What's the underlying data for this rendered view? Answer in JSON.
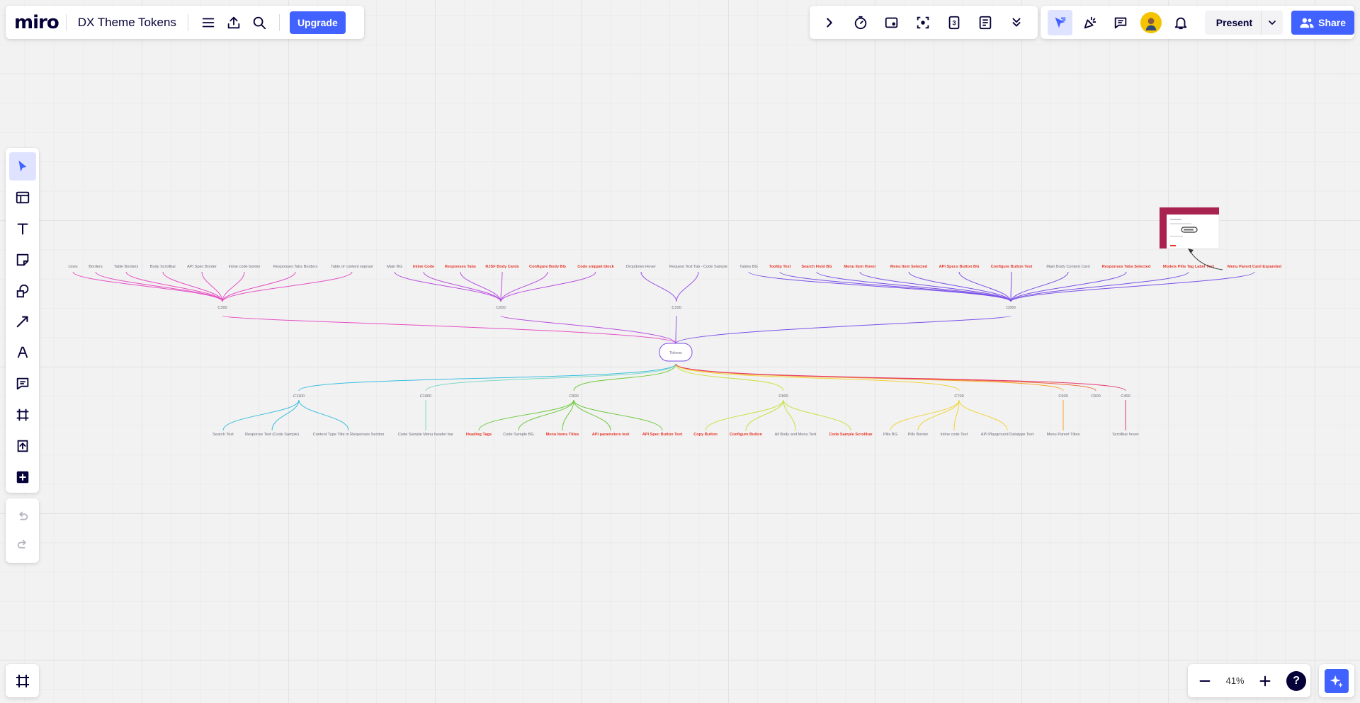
{
  "app": {
    "logo": "miro",
    "board_title": "DX Theme Tokens",
    "upgrade_label": "Upgrade"
  },
  "toolbar_right": {
    "present_label": "Present",
    "share_label": "Share"
  },
  "zoom": {
    "level": "41%"
  },
  "help_label": "?",
  "mindmap": {
    "root": "Tokens",
    "top_groups": [
      {
        "label": "C300",
        "color": "#e64fc4",
        "children": [
          {
            "text": "Lines",
            "red": false
          },
          {
            "text": "Borders",
            "red": false
          },
          {
            "text": "Table Borders",
            "red": false
          },
          {
            "text": "Body Scrollbar",
            "red": false
          },
          {
            "text": "API Spec Border",
            "red": false
          },
          {
            "text": "Inline code border",
            "red": false
          },
          {
            "text": "Responses Tabs Borders",
            "red": false
          },
          {
            "text": "Table of content sepraor",
            "red": false
          }
        ]
      },
      {
        "label": "C200",
        "color": "#b84fe0",
        "children": [
          {
            "text": "Main BG",
            "red": false
          },
          {
            "text": "Inline Code",
            "red": true
          },
          {
            "text": "Responses Tabs",
            "red": true
          },
          {
            "text": "RJSF Body Cards",
            "red": true
          },
          {
            "text": "Configure Body BG",
            "red": true
          },
          {
            "text": "Code snippet block",
            "red": true
          }
        ]
      },
      {
        "label": "C100",
        "color": "#9a4fe6",
        "children": [
          {
            "text": "Dropdown Hover",
            "red": false
          },
          {
            "text": "Request Text Tab - Code Sample",
            "red": false
          }
        ]
      },
      {
        "label": "C000",
        "color": "#7b4fe8",
        "children": [
          {
            "text": "Tables BG",
            "red": false
          },
          {
            "text": "Tooltip Text",
            "red": true
          },
          {
            "text": "Search Field BG",
            "red": true
          },
          {
            "text": "Menu Item Hover",
            "red": true
          },
          {
            "text": "Menu Item Selected",
            "red": true
          },
          {
            "text": "API Specs Button BG",
            "red": true
          },
          {
            "text": "Configure Button Text",
            "red": true
          },
          {
            "text": "Main Body Content Card",
            "red": false
          },
          {
            "text": "Responses Tabs Selected",
            "red": true
          },
          {
            "text": "Models Pills Tag Label Text",
            "red": true
          },
          {
            "text": "Menu Parent Card Expanded",
            "red": true
          }
        ]
      }
    ],
    "bottom_groups": [
      {
        "label": "C1100",
        "color": "#39bde0",
        "children": [
          {
            "text": "Search Text",
            "red": false
          },
          {
            "text": "Response Text (Code Sample)",
            "red": false
          },
          {
            "text": "Content Type Title in Responses Section",
            "red": false
          }
        ]
      },
      {
        "label": "C1000",
        "color": "#7fd9c4",
        "children": [
          {
            "text": "Code Sample Menu header bar",
            "red": false
          }
        ]
      },
      {
        "label": "C900",
        "color": "#6cc93a",
        "children": [
          {
            "text": "Heading Tags",
            "red": true
          },
          {
            "text": "Code Sample BG",
            "red": false
          },
          {
            "text": "Menu Items Titles",
            "red": true
          },
          {
            "text": "API parameters text",
            "red": true
          },
          {
            "text": "API Spec Button Text",
            "red": true
          }
        ]
      },
      {
        "label": "C800",
        "color": "#c8e03a",
        "children": [
          {
            "text": "Copy Button",
            "red": true
          },
          {
            "text": "Configure Button",
            "red": true
          },
          {
            "text": "All Body and Menu Text",
            "red": false
          },
          {
            "text": "Code Sample Scrollbar",
            "red": true
          }
        ]
      },
      {
        "label": "C700",
        "color": "#f0d43a",
        "children": [
          {
            "text": "Pills BG",
            "red": false
          },
          {
            "text": "Pills Border",
            "red": false
          },
          {
            "text": "Inline code Text",
            "red": false
          },
          {
            "text": "API Playground Datatype Text",
            "red": false
          }
        ]
      },
      {
        "label": "C600",
        "color": "#f5a623",
        "children": [
          {
            "text": "Menu Parent Titles",
            "red": false
          }
        ]
      },
      {
        "label": "C500",
        "color": "#f06a3a",
        "children": []
      },
      {
        "label": "C400",
        "color": "#e6386e",
        "children": [
          {
            "text": "Scrollbar hover",
            "red": false
          }
        ]
      }
    ]
  }
}
